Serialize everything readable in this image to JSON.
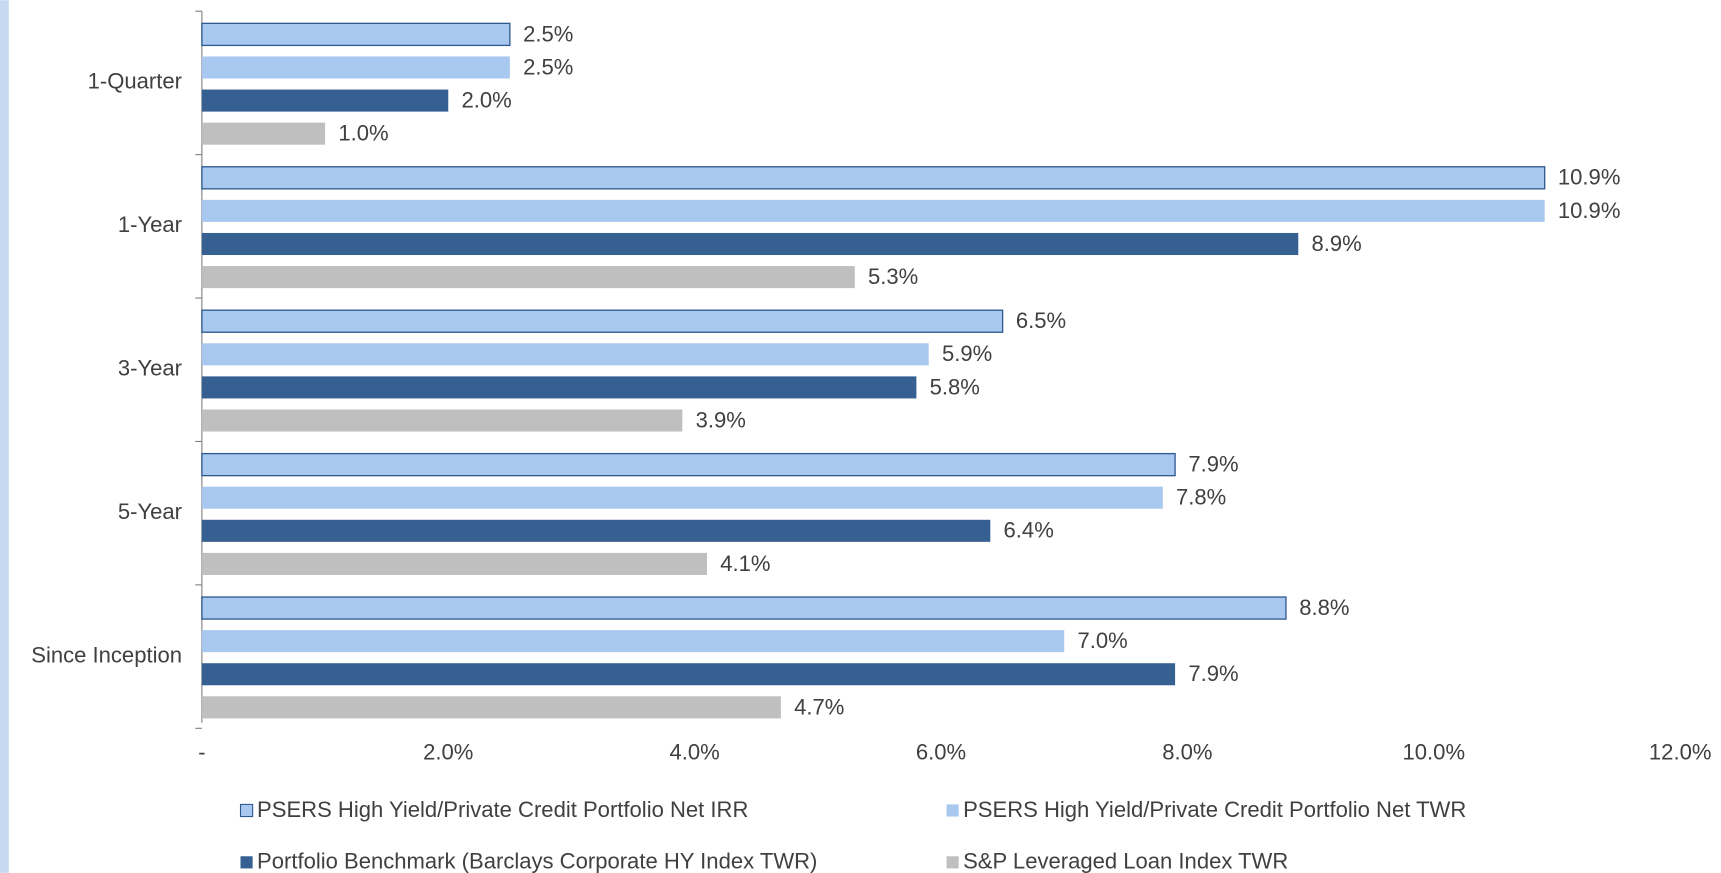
{
  "chart_data": {
    "type": "hbar",
    "categories": [
      "1-Quarter",
      "1-Year",
      "3-Year",
      "5-Year",
      "Since Inception"
    ],
    "series": [
      {
        "name": "PSERS High Yield/Private Credit Portfolio Net IRR",
        "color": "#a9c8f0",
        "edgecolor": "#2f5a8f",
        "values": [
          2.5,
          10.9,
          6.5,
          7.9,
          8.8
        ],
        "value_labels": [
          "2.5%",
          "10.9%",
          "6.5%",
          "7.9%",
          "8.8%"
        ]
      },
      {
        "name": "PSERS High Yield/Private Credit Portfolio Net TWR",
        "color": "#a9c8f0",
        "values": [
          2.5,
          10.9,
          5.9,
          7.8,
          7.0
        ],
        "value_labels": [
          "2.5%",
          "10.9%",
          "5.9%",
          "7.8%",
          "7.0%"
        ]
      },
      {
        "name": "Portfolio Benchmark (Barclays Corporate HY Index TWR)",
        "color": "#376092",
        "values": [
          2.0,
          8.9,
          5.8,
          6.4,
          7.9
        ],
        "value_labels": [
          "2.0%",
          "8.9%",
          "5.8%",
          "6.4%",
          "7.9%"
        ]
      },
      {
        "name": "S&P Leveraged Loan Index TWR",
        "color": "#bfbfbf",
        "values": [
          1.0,
          5.3,
          3.9,
          4.1,
          4.7
        ],
        "value_labels": [
          "1.0%",
          "5.3%",
          "3.9%",
          "4.1%",
          "4.7%"
        ]
      }
    ],
    "xlim": [
      0,
      12
    ],
    "xticks": [
      {
        "value": 0,
        "label": "-"
      },
      {
        "value": 2,
        "label": "2.0%"
      },
      {
        "value": 4,
        "label": "4.0%"
      },
      {
        "value": 6,
        "label": "6.0%"
      },
      {
        "value": 8,
        "label": "8.0%"
      },
      {
        "value": 10,
        "label": "10.0%"
      },
      {
        "value": 12,
        "label": "12.0%"
      }
    ]
  }
}
